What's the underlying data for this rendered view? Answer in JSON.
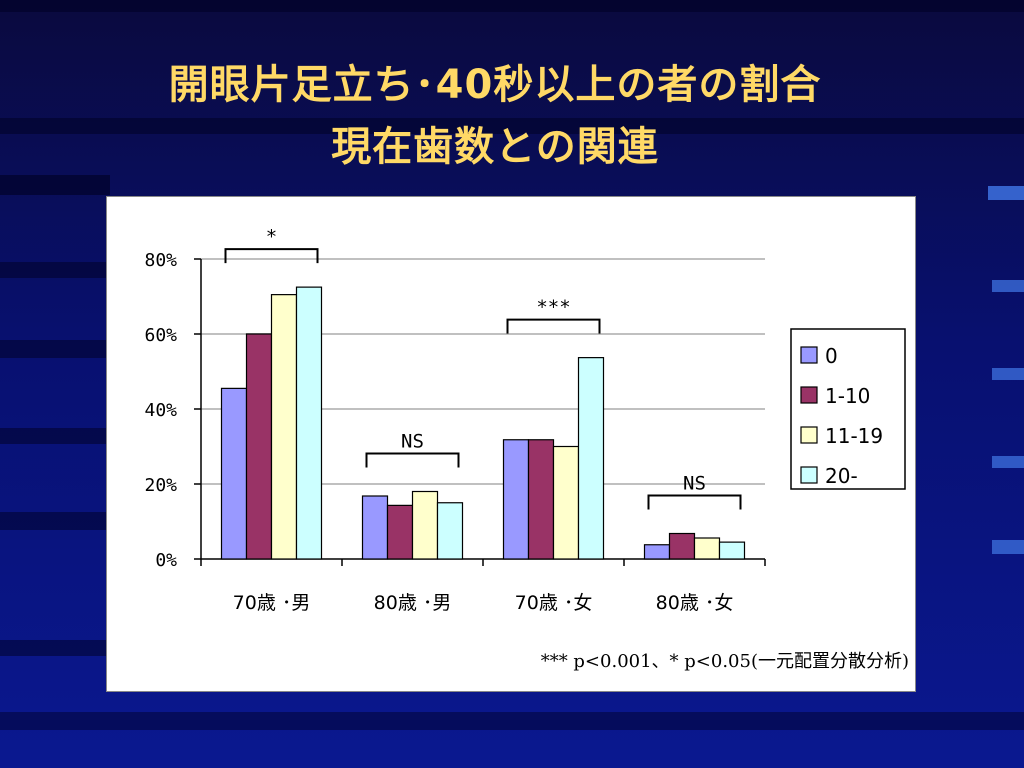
{
  "slide": {
    "title_line1": "開眼片足立ち･40秒以上の者の割合",
    "title_line2": "現在歯数との関連"
  },
  "colors": {
    "title": "#ffd966",
    "background": "#0a1470",
    "panel": "#ffffff"
  },
  "footnote": "*** p<0.001、* p<0.05(一元配置分散分析)",
  "chart_data": {
    "type": "bar",
    "categories": [
      "70歳 ･男",
      "80歳 ･男",
      "70歳 ･女",
      "80歳 ･女"
    ],
    "series": [
      {
        "name": "0",
        "color": "#9999ff",
        "values": [
          45.5,
          16.8,
          31.8,
          3.8
        ]
      },
      {
        "name": "1-10",
        "color": "#993366",
        "values": [
          60.0,
          14.3,
          31.8,
          6.8
        ]
      },
      {
        "name": "11-19",
        "color": "#ffffcc",
        "values": [
          70.5,
          18.0,
          30.0,
          5.6
        ]
      },
      {
        "name": "20-",
        "color": "#ccffff",
        "values": [
          72.5,
          15.0,
          53.7,
          4.5
        ]
      }
    ],
    "yticks": [
      "0%",
      "20%",
      "40%",
      "60%",
      "80%"
    ],
    "ylim": [
      0,
      80
    ],
    "grid": true,
    "legend_position": "right",
    "significance": [
      "*",
      "NS",
      "***",
      "NS"
    ]
  }
}
